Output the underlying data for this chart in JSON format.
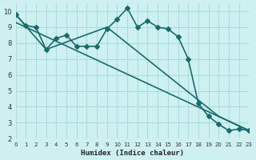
{
  "background_color": "#cff0f0",
  "grid_color": "#aadddd",
  "line_color": "#1a6b6b",
  "xlabel": "Humidex (Indice chaleur)",
  "xlim": [
    0,
    23
  ],
  "ylim": [
    2,
    10.5
  ],
  "yticks": [
    2,
    3,
    4,
    5,
    6,
    7,
    8,
    9,
    10
  ],
  "xticks": [
    0,
    1,
    2,
    3,
    4,
    5,
    6,
    7,
    8,
    9,
    10,
    11,
    12,
    13,
    14,
    15,
    16,
    17,
    18,
    19,
    20,
    21,
    22,
    23
  ],
  "line1_x": [
    0,
    1,
    2,
    3,
    4,
    5,
    6,
    7,
    8,
    9,
    10,
    11,
    12,
    13,
    14,
    15,
    16,
    17,
    18,
    19,
    20,
    21,
    22,
    23
  ],
  "line1_y": [
    9.8,
    9.1,
    9.0,
    7.6,
    8.3,
    8.5,
    7.8,
    7.8,
    7.8,
    8.9,
    9.5,
    10.2,
    9.0,
    9.4,
    9.0,
    8.9,
    8.4,
    7.0,
    4.2,
    3.4,
    2.9,
    2.5,
    2.6,
    2.5
  ],
  "line2_x": [
    0,
    3,
    9,
    20,
    23
  ],
  "line2_y": [
    9.8,
    7.6,
    9.0,
    3.4,
    2.5
  ],
  "line3_x": [
    0,
    23
  ],
  "line3_y": [
    9.3,
    2.5
  ],
  "marker": "D",
  "markersize": 3,
  "linewidth": 1.2
}
